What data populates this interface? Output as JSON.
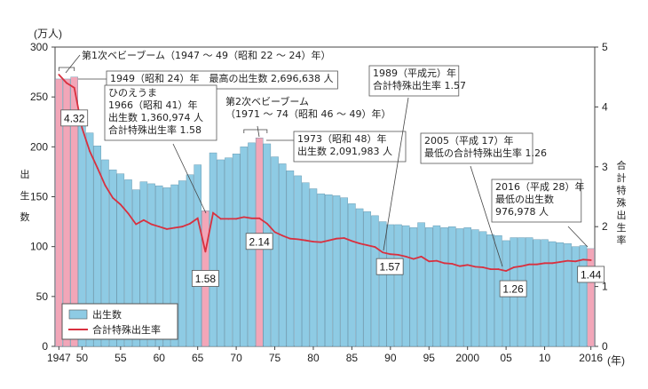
{
  "chart_data": {
    "type": "bar",
    "left_axis": {
      "unit": "(万人)",
      "label": "出生数",
      "range": [
        0,
        300
      ],
      "ticks": [
        0,
        50,
        100,
        150,
        200,
        250,
        300
      ]
    },
    "right_axis": {
      "label": "合計特殊出生率",
      "range": [
        0,
        5
      ],
      "ticks": [
        0,
        1,
        2,
        3,
        4,
        5
      ]
    },
    "x_axis": {
      "unit": "(年)",
      "tick_values": [
        1947,
        1950,
        1955,
        1960,
        1965,
        1970,
        1975,
        1980,
        1985,
        1990,
        1995,
        2000,
        2005,
        2010,
        2016
      ],
      "tick_labels": [
        "1947",
        "50",
        "55",
        "60",
        "65",
        "70",
        "75",
        "80",
        "85",
        "90",
        "95",
        "2000",
        "05",
        "10",
        "2016"
      ]
    },
    "legend": {
      "position": "bottom-left",
      "items": [
        "出生数",
        "合計特殊出生率"
      ]
    },
    "colors": {
      "bar": "#8ecbe4",
      "bar_highlight": "#f2a6b8",
      "line": "#d9303f",
      "box_border": "#555555"
    },
    "highlight_years": [
      1947,
      1948,
      1949,
      1966,
      1973,
      2016
    ],
    "x": [
      1947,
      1948,
      1949,
      1950,
      1951,
      1952,
      1953,
      1954,
      1955,
      1956,
      1957,
      1958,
      1959,
      1960,
      1961,
      1962,
      1963,
      1964,
      1965,
      1966,
      1967,
      1968,
      1969,
      1970,
      1971,
      1972,
      1973,
      1974,
      1975,
      1976,
      1977,
      1978,
      1979,
      1980,
      1981,
      1982,
      1983,
      1984,
      1985,
      1986,
      1987,
      1988,
      1989,
      1990,
      1991,
      1992,
      1993,
      1994,
      1995,
      1996,
      1997,
      1998,
      1999,
      2000,
      2001,
      2002,
      2003,
      2004,
      2005,
      2006,
      2007,
      2008,
      2009,
      2010,
      2011,
      2012,
      2013,
      2014,
      2015,
      2016
    ],
    "series": [
      {
        "name": "出生数",
        "type": "bar",
        "values": [
          268,
          268,
          270,
          234,
          214,
          201,
          187,
          177,
          173,
          167,
          157,
          165,
          163,
          161,
          159,
          162,
          166,
          172,
          182,
          136,
          194,
          187,
          189,
          193,
          200,
          204,
          209,
          203,
          190,
          183,
          176,
          171,
          164,
          158,
          153,
          152,
          151,
          149,
          143,
          138,
          135,
          131,
          125,
          122,
          122,
          121,
          119,
          124,
          119,
          121,
          119,
          120,
          118,
          119,
          117,
          115,
          112,
          111,
          106,
          109,
          109,
          109,
          107,
          107,
          105,
          104,
          103,
          100,
          101,
          98
        ]
      },
      {
        "name": "合計特殊出生率",
        "type": "line",
        "values": [
          4.54,
          4.4,
          4.32,
          3.65,
          3.26,
          2.98,
          2.69,
          2.48,
          2.37,
          2.22,
          2.04,
          2.11,
          2.04,
          2.0,
          1.96,
          1.98,
          2.0,
          2.05,
          2.14,
          1.58,
          2.23,
          2.13,
          2.13,
          2.13,
          2.16,
          2.14,
          2.14,
          2.05,
          1.91,
          1.85,
          1.8,
          1.79,
          1.77,
          1.75,
          1.74,
          1.77,
          1.8,
          1.81,
          1.76,
          1.72,
          1.69,
          1.66,
          1.57,
          1.54,
          1.53,
          1.5,
          1.46,
          1.5,
          1.42,
          1.43,
          1.39,
          1.38,
          1.34,
          1.36,
          1.33,
          1.32,
          1.29,
          1.29,
          1.26,
          1.32,
          1.34,
          1.37,
          1.37,
          1.39,
          1.39,
          1.41,
          1.43,
          1.42,
          1.45,
          1.44
        ]
      }
    ],
    "value_labels": [
      {
        "year": 1949,
        "text": "4.32"
      },
      {
        "year": 1966,
        "text": "1.58"
      },
      {
        "year": 1973,
        "text": "2.14"
      },
      {
        "year": 1989,
        "text": "1.57"
      },
      {
        "year": 2005,
        "text": "1.26"
      },
      {
        "year": 2016,
        "text": "1.44"
      }
    ],
    "annotations": [
      {
        "lines": [
          "第1次ベビーブーム（1947 ～ 49（昭和 22 ～ 24）年）"
        ]
      },
      {
        "lines": [
          "1949（昭和 24）年　最高の出生数 2,696,638 人"
        ]
      },
      {
        "lines": [
          "ひのえうま",
          "1966（昭和 41）年",
          "出生数 1,360,974 人",
          "合計特殊出生率 1.58"
        ]
      },
      {
        "lines": [
          "第2次ベビーブーム",
          "（1971 ～ 74（昭和 46 ～ 49）年）"
        ]
      },
      {
        "lines": [
          "1973（昭和 48）年",
          "出生数 2,091,983 人"
        ]
      },
      {
        "lines": [
          "1989（平成元）年",
          "合計特殊出生率 1.57"
        ]
      },
      {
        "lines": [
          "2005（平成 17）年",
          "最低の合計特殊出生率 1.26"
        ]
      },
      {
        "lines": [
          "2016（平成 28）年",
          "最低の出生数",
          "976,978 人"
        ]
      }
    ]
  }
}
